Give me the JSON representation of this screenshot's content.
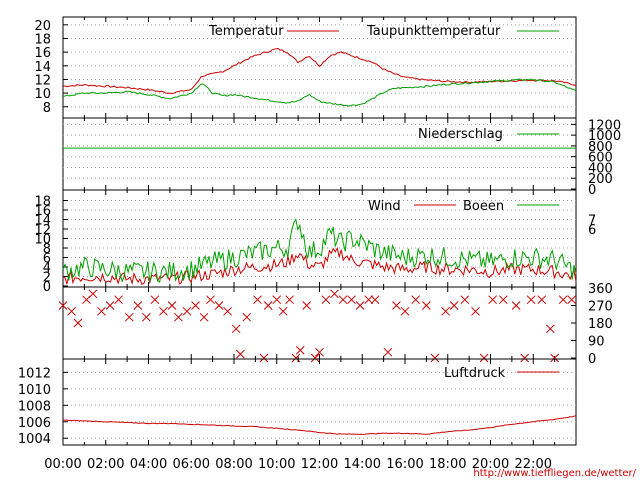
{
  "credit": "http://www.tieffliegen.de/wetter/",
  "colors": {
    "red": "#cc0000",
    "green": "#00a000",
    "grid": "#a0a0a0"
  },
  "time_ticks": [
    "00:00",
    "02:00",
    "04:00",
    "06:00",
    "08:00",
    "10:00",
    "12:00",
    "14:00",
    "16:00",
    "18:00",
    "20:00",
    "22:00"
  ],
  "chart_data": [
    {
      "type": "line",
      "x": [
        0,
        1,
        2,
        3,
        4,
        5,
        6,
        6.5,
        7,
        7.5,
        8,
        8.5,
        9,
        9.5,
        10,
        10.5,
        11,
        11.5,
        12,
        12.5,
        13,
        13.5,
        14,
        14.5,
        15,
        15.5,
        16,
        17,
        18,
        19,
        20,
        21,
        22,
        23,
        24
      ],
      "y_ticks": [
        8,
        10,
        12,
        14,
        16,
        18,
        20
      ],
      "ylim": [
        6.5,
        21
      ],
      "grid": true,
      "legend_position": "top",
      "series": [
        {
          "name": "Temperatur",
          "color": "#cc0000",
          "values": [
            11,
            11.2,
            11,
            10.8,
            10.5,
            10,
            10.5,
            12.5,
            12.8,
            13.2,
            14,
            14.8,
            15.5,
            16,
            16.5,
            16,
            14.5,
            15.5,
            14,
            15.5,
            16,
            15.5,
            15,
            14.5,
            13.5,
            12.8,
            12.3,
            11.9,
            11.7,
            11.6,
            11.7,
            11.8,
            11.9,
            11.8,
            11.2
          ]
        },
        {
          "name": "Taupunkttemperatur",
          "color": "#00a000",
          "values": [
            9.5,
            10,
            10,
            10.2,
            9.8,
            9.2,
            10,
            11.5,
            10,
            9.6,
            9.8,
            9.5,
            9.3,
            9,
            8.8,
            8.6,
            8.8,
            9.8,
            8.8,
            8.5,
            8.3,
            8.2,
            8.4,
            9.2,
            10.1,
            10.7,
            10.8,
            11,
            11.3,
            11.5,
            11.7,
            11.9,
            12,
            11.6,
            10.3
          ]
        }
      ]
    },
    {
      "type": "line",
      "x": [
        0,
        24
      ],
      "y_ticks": [
        0,
        200,
        400,
        600,
        800,
        1000,
        1200
      ],
      "ylim": [
        0,
        1300
      ],
      "grid": true,
      "series": [
        {
          "name": "Niederschlag",
          "color": "#00a000",
          "values": [
            760,
            760
          ]
        }
      ]
    },
    {
      "type": "line",
      "x": [
        0,
        1,
        2,
        3,
        4,
        5,
        6,
        7,
        8,
        9,
        10,
        10.5,
        11,
        11.5,
        12,
        12.5,
        13,
        13.5,
        14,
        15,
        16,
        17,
        18,
        19,
        20,
        21,
        22,
        23,
        24
      ],
      "y_ticks": [
        0,
        2,
        4,
        6,
        8,
        10,
        12,
        14,
        16,
        18
      ],
      "ylim": [
        0,
        20
      ],
      "right_ticks": [
        6,
        7
      ],
      "grid": true,
      "legend_position": "top",
      "series": [
        {
          "name": "Wind",
          "color": "#cc0000",
          "values": [
            1.5,
            2,
            2,
            1.5,
            1.5,
            1.5,
            2,
            2.5,
            3.5,
            4,
            4.5,
            5,
            7,
            4.5,
            4,
            6.5,
            7,
            5.5,
            5,
            4,
            3.5,
            4,
            3.5,
            3.5,
            3,
            3.5,
            3.5,
            3,
            2
          ]
        },
        {
          "name": "Boeen",
          "color": "#00a000",
          "values": [
            3,
            4,
            3.5,
            3,
            3,
            3,
            3.5,
            5,
            6,
            7,
            8,
            8,
            14,
            7,
            8,
            11,
            9,
            10,
            9,
            7,
            6,
            6.5,
            6,
            5.5,
            5,
            6,
            6,
            5.5,
            3
          ]
        }
      ]
    },
    {
      "type": "scatter",
      "y_ticks": [
        0,
        90,
        180,
        270,
        360
      ],
      "ylim": [
        0,
        360
      ],
      "grid": false,
      "marker": "x",
      "color": "#cc0000",
      "points": [
        [
          0,
          270
        ],
        [
          0.4,
          240
        ],
        [
          0.7,
          180
        ],
        [
          1.1,
          300
        ],
        [
          1.4,
          330
        ],
        [
          1.8,
          240
        ],
        [
          2.2,
          270
        ],
        [
          2.6,
          300
        ],
        [
          3.1,
          210
        ],
        [
          3.5,
          270
        ],
        [
          3.9,
          210
        ],
        [
          4.3,
          300
        ],
        [
          4.7,
          240
        ],
        [
          5.1,
          270
        ],
        [
          5.4,
          210
        ],
        [
          5.8,
          240
        ],
        [
          6.2,
          270
        ],
        [
          6.6,
          210
        ],
        [
          6.9,
          300
        ],
        [
          7.3,
          270
        ],
        [
          7.7,
          240
        ],
        [
          8.1,
          150
        ],
        [
          8.3,
          20
        ],
        [
          8.6,
          210
        ],
        [
          9.1,
          300
        ],
        [
          9.4,
          0
        ],
        [
          9.6,
          270
        ],
        [
          10,
          300
        ],
        [
          10.3,
          240
        ],
        [
          10.6,
          300
        ],
        [
          10.9,
          0
        ],
        [
          11.1,
          40
        ],
        [
          11.4,
          270
        ],
        [
          11.8,
          0
        ],
        [
          12,
          30
        ],
        [
          12.3,
          300
        ],
        [
          12.7,
          330
        ],
        [
          13.1,
          300
        ],
        [
          13.5,
          300
        ],
        [
          13.9,
          270
        ],
        [
          14.3,
          300
        ],
        [
          14.6,
          300
        ],
        [
          15.2,
          30
        ],
        [
          15.6,
          270
        ],
        [
          16,
          240
        ],
        [
          16.5,
          300
        ],
        [
          17,
          270
        ],
        [
          17.4,
          0
        ],
        [
          17.9,
          240
        ],
        [
          18.3,
          270
        ],
        [
          18.8,
          300
        ],
        [
          19.3,
          240
        ],
        [
          19.7,
          0
        ],
        [
          20.1,
          300
        ],
        [
          20.6,
          300
        ],
        [
          21.2,
          270
        ],
        [
          21.6,
          0
        ],
        [
          21.9,
          300
        ],
        [
          22.4,
          300
        ],
        [
          22.8,
          150
        ],
        [
          23,
          0
        ],
        [
          23.4,
          300
        ],
        [
          23.8,
          300
        ]
      ]
    },
    {
      "type": "line",
      "x": [
        0,
        1,
        2,
        3,
        4,
        5,
        6,
        7,
        8,
        9,
        10,
        11,
        12,
        13,
        14,
        15,
        16,
        17,
        18,
        19,
        20,
        21,
        22,
        23,
        24
      ],
      "y_ticks": [
        1004,
        1006,
        1008,
        1010,
        1012
      ],
      "ylim": [
        1003.3,
        1013.5
      ],
      "grid": true,
      "legend_position": "top-right",
      "series": [
        {
          "name": "Luftdruck",
          "color": "#cc0000",
          "values": [
            1006.2,
            1006.1,
            1006,
            1005.9,
            1005.8,
            1005.8,
            1005.7,
            1005.6,
            1005.5,
            1005.4,
            1005.2,
            1005,
            1004.7,
            1004.5,
            1004.5,
            1004.6,
            1004.6,
            1004.5,
            1004.8,
            1005,
            1005.3,
            1005.7,
            1006,
            1006.3,
            1006.7
          ]
        }
      ]
    }
  ]
}
